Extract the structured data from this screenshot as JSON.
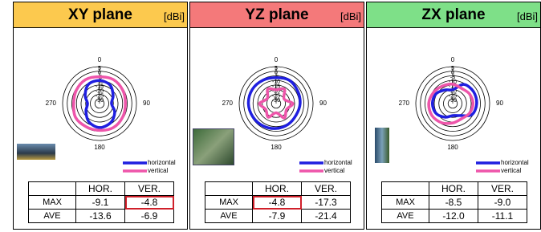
{
  "panels": [
    {
      "title": "XY plane",
      "unit": "[dBi]",
      "angle_labels": [
        "0",
        "90",
        "180",
        "270"
      ],
      "rlim": [
        -35,
        5
      ],
      "rticks": [
        5,
        0,
        -5,
        -10,
        -15,
        -20,
        -25,
        -30
      ],
      "angles": [
        0,
        30,
        60,
        90,
        120,
        150,
        180,
        210,
        240,
        270,
        300,
        330
      ],
      "series": [
        {
          "name": "horizontal",
          "color": "#1f1fe0",
          "values": [
            -10,
            -12,
            -18,
            -22,
            -16,
            -11,
            -9,
            -12,
            -18,
            -22,
            -17,
            -11
          ]
        },
        {
          "name": "vertical",
          "color": "#ee55aa",
          "values": [
            -6,
            -5,
            -6,
            -7,
            -6,
            -5,
            -6,
            -6,
            -5,
            -7,
            -6,
            -5
          ]
        }
      ],
      "table": {
        "header": [
          "HOR.",
          "VER."
        ],
        "rows": [
          {
            "label": "MAX",
            "cells": [
              "-9.1",
              "-4.8"
            ]
          },
          {
            "label": "AVE",
            "cells": [
              "-13.6",
              "-6.9"
            ]
          }
        ]
      }
    },
    {
      "title": "YZ plane",
      "unit": "[dBi]",
      "angle_labels": [
        "0",
        "90",
        "180",
        "270"
      ],
      "rlim": [
        -35,
        5
      ],
      "rticks": [
        5,
        0,
        -5,
        -10,
        -15,
        -20,
        -25,
        -30
      ],
      "angles": [
        0,
        30,
        60,
        90,
        120,
        150,
        180,
        210,
        240,
        270,
        300,
        330
      ],
      "series": [
        {
          "name": "horizontal",
          "color": "#1f1fe0",
          "values": [
            -7,
            -6,
            -8,
            -9,
            -10,
            -9,
            -8,
            -7,
            -6,
            -5,
            -5,
            -6
          ]
        },
        {
          "name": "vertical",
          "color": "#ee55aa",
          "values": [
            -20,
            -17,
            -25,
            -17,
            -22,
            -17,
            -25,
            -18,
            -22,
            -17,
            -24,
            -17
          ]
        }
      ],
      "table": {
        "header": [
          "HOR.",
          "VER."
        ],
        "rows": [
          {
            "label": "MAX",
            "cells": [
              "-4.8",
              "-17.3"
            ]
          },
          {
            "label": "AVE",
            "cells": [
              "-7.9",
              "-21.4"
            ]
          }
        ]
      }
    },
    {
      "title": "ZX plane",
      "unit": "[dBi]",
      "angle_labels": [
        "0",
        "90",
        "180",
        "270"
      ],
      "rlim": [
        -35,
        5
      ],
      "rticks": [
        5,
        0,
        -5,
        -10,
        -15,
        -20,
        -25,
        -30
      ],
      "angles": [
        0,
        30,
        60,
        90,
        120,
        150,
        180,
        210,
        240,
        270,
        300,
        330
      ],
      "series": [
        {
          "name": "horizontal",
          "color": "#1f1fe0",
          "values": [
            -20,
            -11,
            -9,
            -9,
            -11,
            -20,
            -22,
            -18,
            -14,
            -13,
            -14,
            -18
          ]
        },
        {
          "name": "vertical",
          "color": "#ee55aa",
          "values": [
            -14,
            -16,
            -14,
            -13,
            -14,
            -16,
            -14,
            -11,
            -9,
            -9,
            -11,
            -13
          ]
        }
      ],
      "table": {
        "header": [
          "HOR.",
          "VER."
        ],
        "rows": [
          {
            "label": "MAX",
            "cells": [
              "-8.5",
              "-9.0"
            ]
          },
          {
            "label": "AVE",
            "cells": [
              "-12.0",
              "-11.1"
            ]
          }
        ]
      }
    }
  ]
}
